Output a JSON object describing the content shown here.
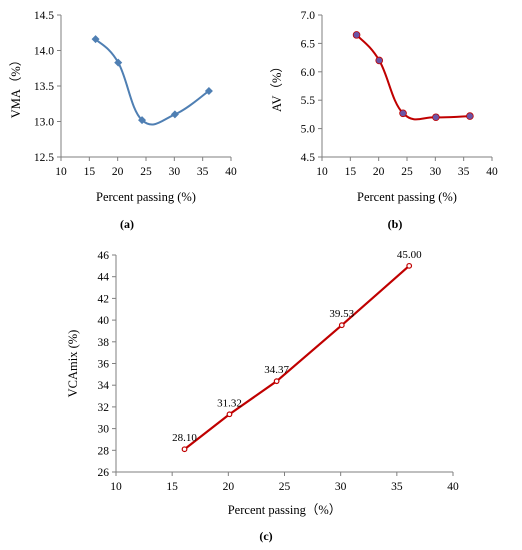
{
  "chart_data": [
    {
      "type": "line",
      "panel_label": "(a)",
      "xlabel": "Percent passing (%)",
      "ylabel": "VMA（%）",
      "xlim": [
        10,
        40
      ],
      "ylim": [
        12.5,
        14.5
      ],
      "x_ticks": [
        10,
        15,
        20,
        25,
        30,
        35,
        40
      ],
      "y_ticks": [
        12.5,
        13.0,
        13.5,
        14.0,
        14.5
      ],
      "y_tick_labels": [
        "12.5",
        "13.0",
        "13.5",
        "14.0",
        "14.5"
      ],
      "grid": false,
      "line_color": "#4f7fb3",
      "marker_color": "#4f7fb3",
      "marker": "diamond",
      "series": [
        {
          "x": [
            16.1,
            20.1,
            24.3,
            30.1,
            36.1
          ],
          "y": [
            14.16,
            13.83,
            13.02,
            13.1,
            13.43
          ]
        }
      ]
    },
    {
      "type": "line",
      "panel_label": "(b)",
      "xlabel": "Percent passing (%)",
      "ylabel": "AV（%）",
      "xlim": [
        10,
        40
      ],
      "ylim": [
        4.5,
        7.0
      ],
      "x_ticks": [
        10,
        15,
        20,
        25,
        30,
        35,
        40
      ],
      "y_ticks": [
        4.5,
        5.0,
        5.5,
        6.0,
        6.5,
        7.0
      ],
      "y_tick_labels": [
        "4.5",
        "5.0",
        "5.5",
        "6.0",
        "6.5",
        "7.0"
      ],
      "grid": false,
      "line_color": "#c00000",
      "marker_color": "#6a55a6",
      "marker": "circle",
      "series": [
        {
          "x": [
            16.1,
            20.1,
            24.3,
            30.1,
            36.1
          ],
          "y": [
            6.65,
            6.2,
            5.27,
            5.2,
            5.22
          ]
        }
      ]
    },
    {
      "type": "line",
      "panel_label": "(c)",
      "xlabel": "Percent passing（%）",
      "ylabel": "VCAmix (%)",
      "xlim": [
        10,
        40
      ],
      "ylim": [
        26,
        46
      ],
      "x_ticks": [
        10,
        15,
        20,
        25,
        30,
        35,
        40
      ],
      "y_ticks": [
        26,
        28,
        30,
        32,
        34,
        36,
        38,
        40,
        42,
        44,
        46
      ],
      "y_tick_labels": [
        "26",
        "28",
        "30",
        "32",
        "34",
        "36",
        "38",
        "40",
        "42",
        "44",
        "46"
      ],
      "grid": false,
      "line_color": "#c00000",
      "marker_color": "#c00000",
      "marker": "open-circle",
      "series": [
        {
          "x": [
            16.1,
            20.1,
            24.3,
            30.1,
            36.1
          ],
          "y": [
            28.1,
            31.32,
            34.37,
            39.53,
            45.0
          ],
          "labels": [
            "28.10",
            "31.32",
            "34.37",
            "39.53",
            "45.00"
          ]
        }
      ]
    }
  ]
}
